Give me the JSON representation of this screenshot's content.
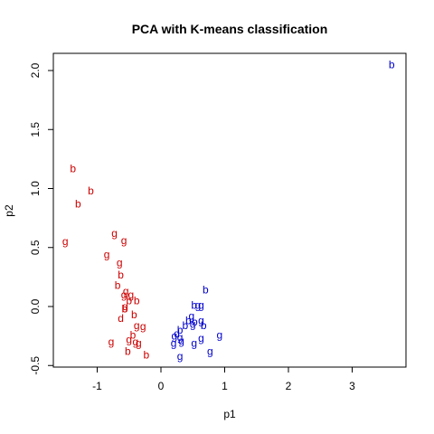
{
  "chart_data": {
    "type": "scatter",
    "title": "PCA with K-means classification",
    "xlabel": "p1",
    "ylabel": "p2",
    "xlim": [
      -1.6,
      3.8
    ],
    "ylim": [
      -0.52,
      2.12
    ],
    "x_ticks": [
      -1,
      0,
      1,
      2,
      3
    ],
    "y_ticks": [
      -0.5,
      0.0,
      0.5,
      1.0,
      1.5,
      2.0
    ],
    "x_tick_labels": [
      "-1",
      "0",
      "1",
      "2",
      "3"
    ],
    "y_tick_labels": [
      "-0.5",
      "0.0",
      "0.5",
      "1.0",
      "1.5",
      "2.0"
    ],
    "grid": false,
    "legend": "none",
    "series": [
      {
        "color": "#cc0000",
        "points": [
          {
            "x": -1.38,
            "y": 1.17,
            "label": "b"
          },
          {
            "x": -1.1,
            "y": 0.98,
            "label": "b"
          },
          {
            "x": -1.3,
            "y": 0.87,
            "label": "b"
          },
          {
            "x": -1.5,
            "y": 0.55,
            "label": "g"
          },
          {
            "x": -0.73,
            "y": 0.62,
            "label": "g"
          },
          {
            "x": -0.58,
            "y": 0.56,
            "label": "g"
          },
          {
            "x": -0.85,
            "y": 0.44,
            "label": "g"
          },
          {
            "x": -0.65,
            "y": 0.37,
            "label": "g"
          },
          {
            "x": -0.63,
            "y": 0.27,
            "label": "b"
          },
          {
            "x": -0.68,
            "y": 0.18,
            "label": "b"
          },
          {
            "x": -0.55,
            "y": 0.13,
            "label": "g"
          },
          {
            "x": -0.47,
            "y": 0.1,
            "label": "g"
          },
          {
            "x": -0.58,
            "y": 0.1,
            "label": "g"
          },
          {
            "x": -0.5,
            "y": 0.05,
            "label": "b"
          },
          {
            "x": -0.38,
            "y": 0.05,
            "label": "b"
          },
          {
            "x": -0.56,
            "y": 0.0,
            "label": "g"
          },
          {
            "x": -0.57,
            "y": -0.02,
            "label": "b"
          },
          {
            "x": -0.42,
            "y": -0.07,
            "label": "b"
          },
          {
            "x": -0.63,
            "y": -0.1,
            "label": "d"
          },
          {
            "x": -0.38,
            "y": -0.16,
            "label": "g"
          },
          {
            "x": -0.28,
            "y": -0.17,
            "label": "g"
          },
          {
            "x": -0.44,
            "y": -0.24,
            "label": "b"
          },
          {
            "x": -0.5,
            "y": -0.28,
            "label": "g"
          },
          {
            "x": -0.4,
            "y": -0.3,
            "label": "g"
          },
          {
            "x": -0.78,
            "y": -0.3,
            "label": "g"
          },
          {
            "x": -0.35,
            "y": -0.31,
            "label": "g"
          },
          {
            "x": -0.52,
            "y": -0.38,
            "label": "b"
          },
          {
            "x": -0.23,
            "y": -0.41,
            "label": "b"
          }
        ]
      },
      {
        "color": "#0000cc",
        "points": [
          {
            "x": 3.62,
            "y": 2.05,
            "label": "b"
          },
          {
            "x": 0.7,
            "y": 0.14,
            "label": "b"
          },
          {
            "x": 0.52,
            "y": 0.01,
            "label": "b"
          },
          {
            "x": 0.58,
            "y": 0.01,
            "label": "g"
          },
          {
            "x": 0.63,
            "y": 0.01,
            "label": "g"
          },
          {
            "x": 0.48,
            "y": -0.08,
            "label": "g"
          },
          {
            "x": 0.43,
            "y": -0.12,
            "label": "b"
          },
          {
            "x": 0.53,
            "y": -0.13,
            "label": "b"
          },
          {
            "x": 0.63,
            "y": -0.12,
            "label": "g"
          },
          {
            "x": 0.5,
            "y": -0.15,
            "label": "g"
          },
          {
            "x": 0.67,
            "y": -0.16,
            "label": "b"
          },
          {
            "x": 0.38,
            "y": -0.16,
            "label": "b"
          },
          {
            "x": 0.3,
            "y": -0.2,
            "label": "b"
          },
          {
            "x": 0.25,
            "y": -0.23,
            "label": "d"
          },
          {
            "x": 0.3,
            "y": -0.26,
            "label": "g"
          },
          {
            "x": 0.21,
            "y": -0.25,
            "label": "g"
          },
          {
            "x": 0.32,
            "y": -0.29,
            "label": "g"
          },
          {
            "x": 0.92,
            "y": -0.24,
            "label": "g"
          },
          {
            "x": 0.63,
            "y": -0.27,
            "label": "g"
          },
          {
            "x": 0.52,
            "y": -0.31,
            "label": "g"
          },
          {
            "x": 0.2,
            "y": -0.31,
            "label": "g"
          },
          {
            "x": 0.77,
            "y": -0.38,
            "label": "g"
          },
          {
            "x": 0.3,
            "y": -0.42,
            "label": "g"
          }
        ]
      }
    ]
  }
}
